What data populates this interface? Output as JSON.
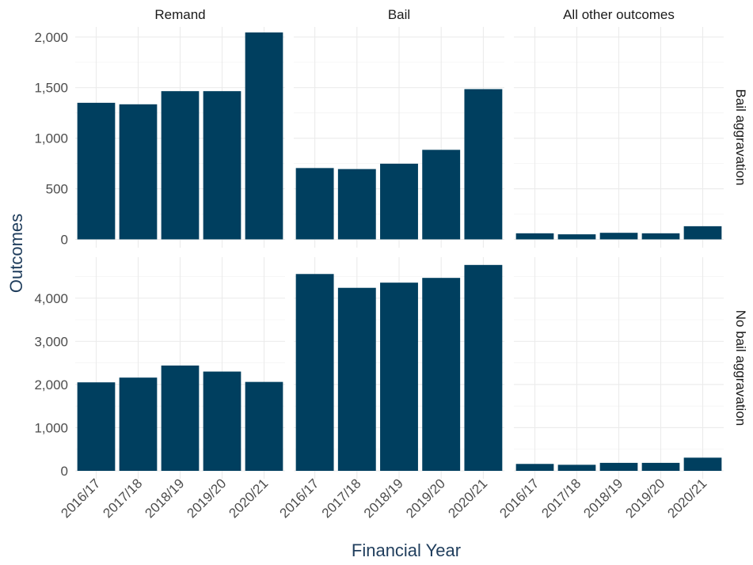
{
  "chart_data": {
    "type": "bar",
    "facet_layout": "grid",
    "xlabel": "Financial Year",
    "ylabel": "Outcomes",
    "categories": [
      "2016/17",
      "2017/18",
      "2018/19",
      "2019/20",
      "2020/21"
    ],
    "columns": [
      "Remand",
      "Bail",
      "All other outcomes"
    ],
    "bar_color": "#003f5f",
    "grid": true,
    "rows": [
      {
        "label": "Bail aggravation",
        "ylim": [
          0,
          2100
        ],
        "yticks": [
          0,
          500,
          1000,
          1500,
          2000
        ],
        "ytick_labels": [
          "0",
          "500",
          "1,000",
          "1,500",
          "2,000"
        ],
        "panels": [
          {
            "column": "Remand",
            "values": [
              1350,
              1335,
              1465,
              1465,
              2045
            ]
          },
          {
            "column": "Bail",
            "values": [
              705,
              695,
              748,
              885,
              1485
            ]
          },
          {
            "column": "All other outcomes",
            "values": [
              60,
              50,
              65,
              60,
              130
            ]
          }
        ]
      },
      {
        "label": "No bail aggravation",
        "ylim": [
          0,
          4950
        ],
        "yticks": [
          0,
          1000,
          2000,
          3000,
          4000
        ],
        "ytick_labels": [
          "0",
          "1,000",
          "2,000",
          "3,000",
          "4,000"
        ],
        "panels": [
          {
            "column": "Remand",
            "values": [
              2050,
              2160,
              2440,
              2300,
              2060
            ]
          },
          {
            "column": "Bail",
            "values": [
              4560,
              4240,
              4360,
              4470,
              4770
            ]
          },
          {
            "column": "All other outcomes",
            "values": [
              160,
              140,
              185,
              185,
              305
            ]
          }
        ]
      }
    ]
  }
}
